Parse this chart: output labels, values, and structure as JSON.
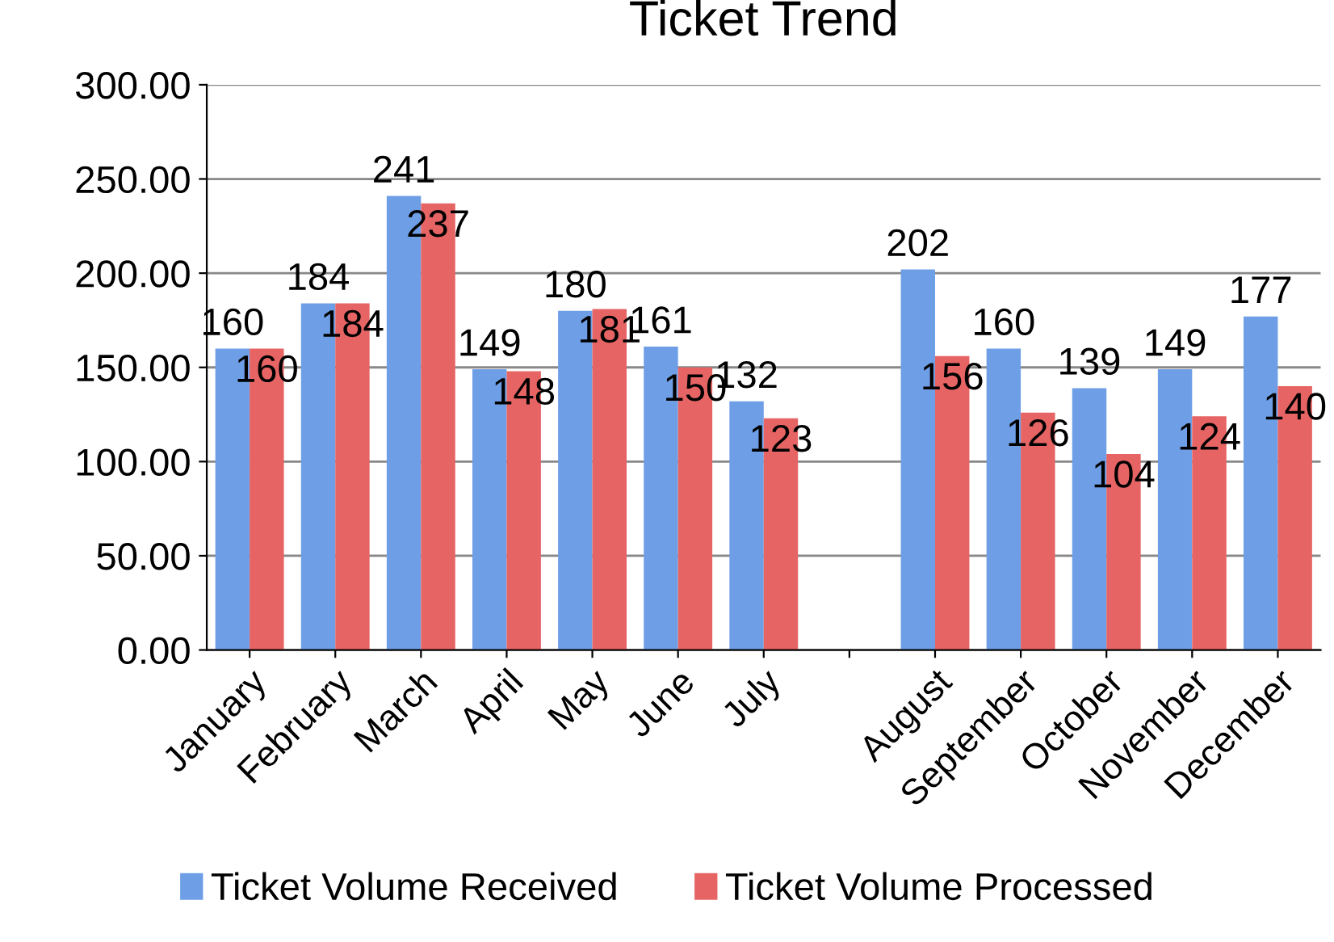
{
  "chart_data": {
    "type": "bar",
    "title": "Ticket Trend",
    "categories": [
      "January",
      "February",
      "March",
      "April",
      "May",
      "June",
      "July",
      null,
      "August",
      "September",
      "October",
      "November",
      "December"
    ],
    "series": [
      {
        "name": "Ticket Volume Received",
        "color": "#6e9fe6",
        "values": [
          160,
          184,
          241,
          149,
          180,
          161,
          132,
          null,
          202,
          160,
          139,
          149,
          177
        ]
      },
      {
        "name": "Ticket Volume Processed",
        "color": "#e66464",
        "values": [
          160,
          184,
          237,
          148,
          181,
          150,
          123,
          null,
          156,
          126,
          104,
          124,
          140
        ]
      }
    ],
    "ylim": [
      0,
      300
    ],
    "yticks": [
      {
        "value": 0,
        "label": "0.00"
      },
      {
        "value": 50,
        "label": "50.00"
      },
      {
        "value": 100,
        "label": "100.00"
      },
      {
        "value": 150,
        "label": "150.00"
      },
      {
        "value": 200,
        "label": "200.00"
      },
      {
        "value": 250,
        "label": "250.00"
      },
      {
        "value": 300,
        "label": "300.00"
      }
    ],
    "grid": "y",
    "legend": "bottom",
    "data_labels": true
  }
}
